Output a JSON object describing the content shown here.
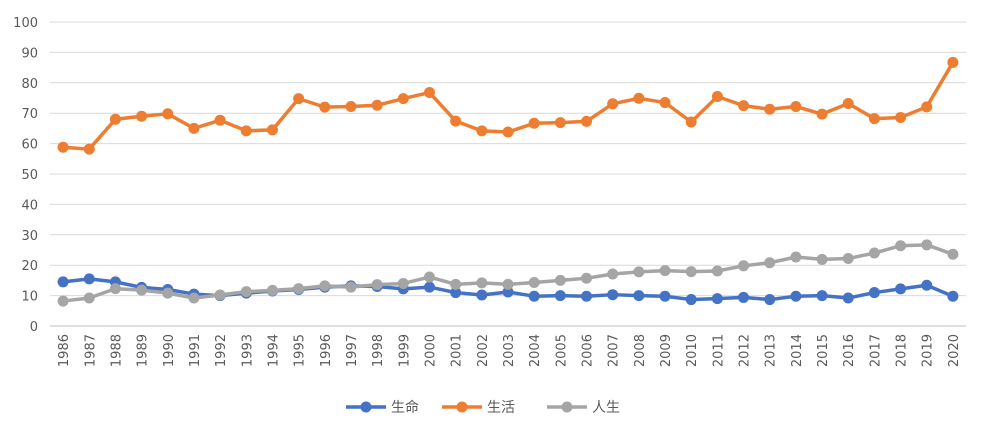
{
  "chart_data": {
    "type": "line",
    "categories": [
      "1986",
      "1987",
      "1988",
      "1989",
      "1990",
      "1991",
      "1992",
      "1993",
      "1994",
      "1995",
      "1996",
      "1997",
      "1998",
      "1999",
      "2000",
      "2001",
      "2002",
      "2003",
      "2004",
      "2005",
      "2006",
      "2007",
      "2008",
      "2009",
      "2010",
      "2011",
      "2012",
      "2013",
      "2014",
      "2015",
      "2016",
      "2017",
      "2018",
      "2019",
      "2020"
    ],
    "ylim": [
      0,
      100
    ],
    "yticks": [
      0,
      10,
      20,
      30,
      40,
      50,
      60,
      70,
      80,
      90,
      100
    ],
    "grid": true,
    "legend_position": "bottom",
    "series": [
      {
        "name": "生命",
        "color": "#4472C4",
        "values": [
          14.5,
          15.5,
          14.5,
          12.7,
          12.0,
          10.5,
          10.0,
          10.8,
          11.5,
          12.0,
          12.8,
          13.2,
          13.0,
          12.2,
          12.8,
          11.0,
          10.2,
          11.2,
          9.8,
          10.0,
          9.8,
          10.3,
          10.0,
          9.8,
          8.7,
          9.0,
          9.4,
          8.7,
          9.8,
          10.0,
          9.2,
          11.0,
          12.2,
          13.4,
          9.8
        ]
      },
      {
        "name": "生活",
        "color": "#ED7D31",
        "values": [
          58.8,
          58.2,
          68.0,
          69.0,
          69.8,
          65.0,
          67.7,
          64.2,
          64.5,
          74.8,
          72.0,
          72.2,
          72.6,
          74.8,
          76.8,
          67.4,
          64.2,
          63.8,
          66.7,
          66.9,
          67.3,
          73.1,
          74.9,
          73.5,
          67.1,
          75.5,
          72.5,
          71.3,
          72.2,
          69.7,
          73.2,
          68.2,
          68.6,
          72.1,
          86.7
        ]
      },
      {
        "name": "人生",
        "color": "#A5A5A5",
        "values": [
          8.2,
          9.2,
          12.3,
          11.8,
          10.8,
          9.2,
          10.2,
          11.3,
          11.7,
          12.3,
          13.2,
          12.8,
          13.6,
          14.0,
          16.1,
          13.7,
          14.2,
          13.7,
          14.3,
          15.0,
          15.7,
          17.1,
          17.8,
          18.2,
          17.9,
          18.1,
          19.8,
          20.8,
          22.7,
          21.9,
          22.2,
          24.0,
          26.4,
          26.7,
          23.6
        ]
      }
    ]
  }
}
